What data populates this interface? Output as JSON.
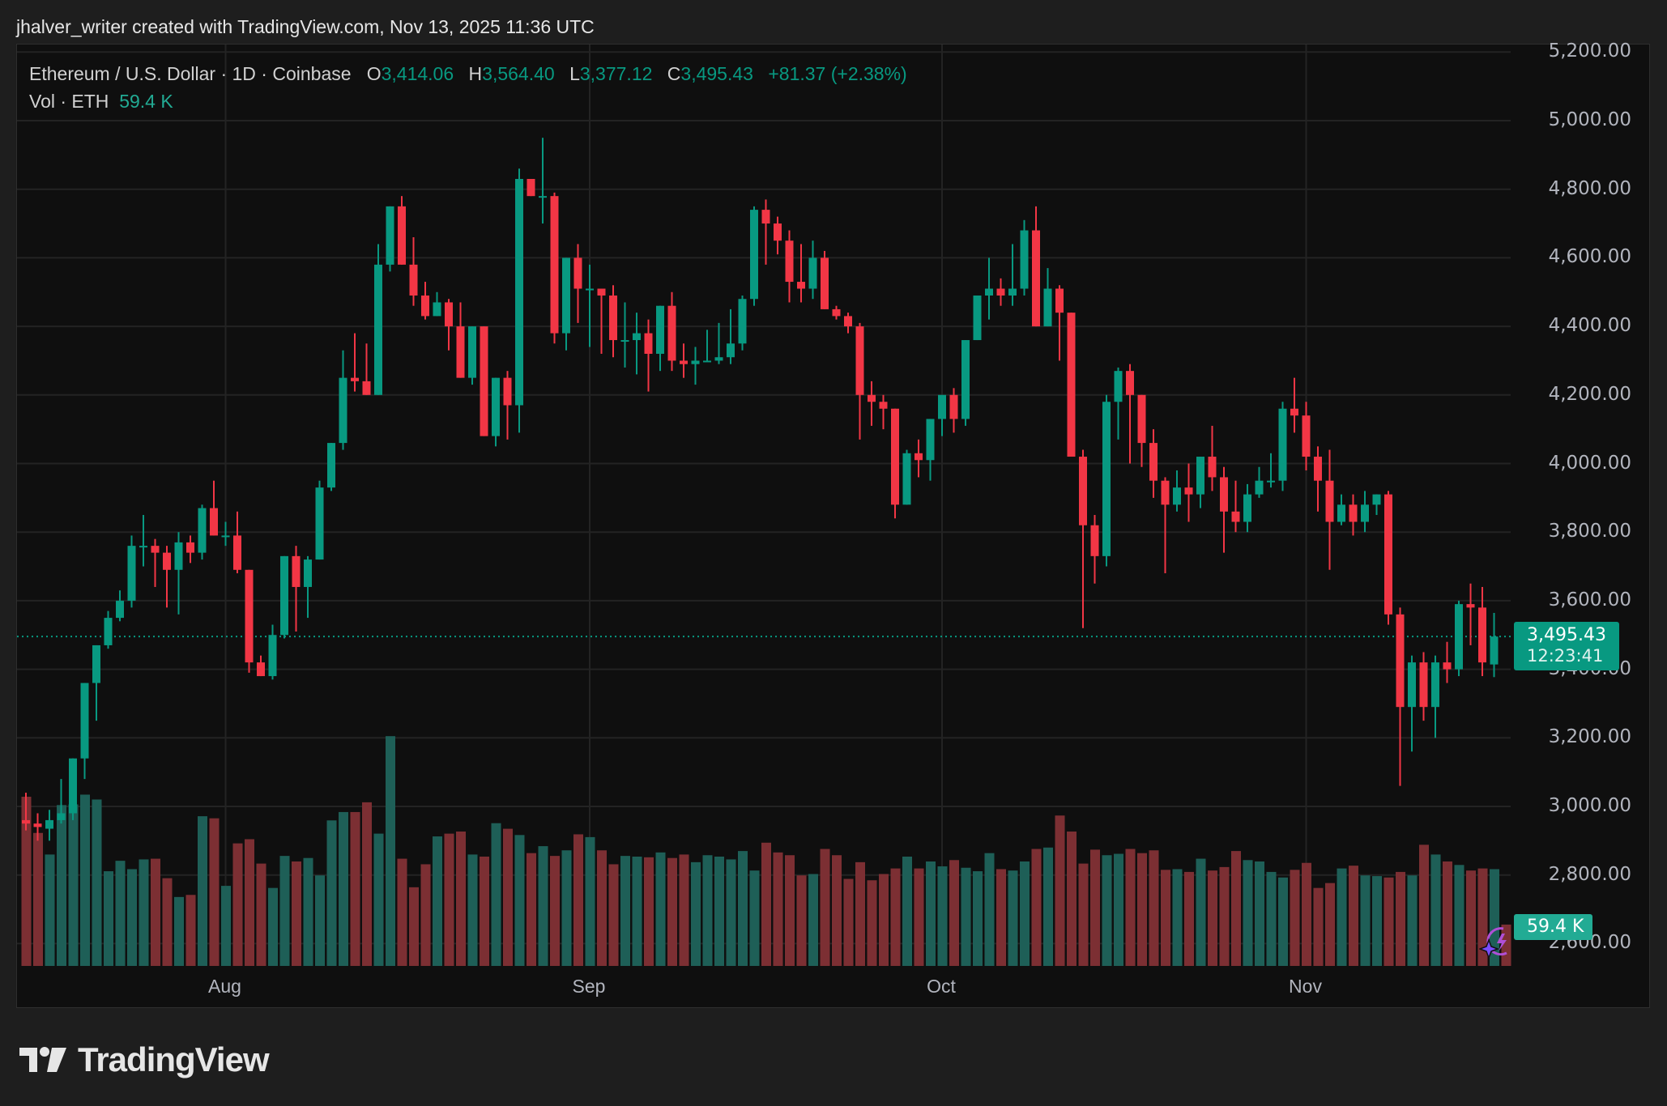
{
  "attribution": "jhalver_writer created with TradingView.com, Nov 13, 2025 11:36 UTC",
  "legend": {
    "symbol": "Ethereum / U.S. Dollar · 1D · Coinbase",
    "open_label": "O",
    "open": "3,414.06",
    "high_label": "H",
    "high": "3,564.40",
    "low_label": "L",
    "low": "3,377.12",
    "close_label": "C",
    "close": "3,495.43",
    "change": "+81.37 (+2.38%)",
    "volume_label": "Vol · ETH",
    "volume": "59.4 K"
  },
  "price_tag": {
    "price": "3,495.43",
    "countdown": "12:23:41"
  },
  "volume_tag": "59.4 K",
  "logo_text": "TradingView",
  "colors": {
    "up": "#089981",
    "down": "#f23645",
    "vol_up": "#1e5f57",
    "vol_down": "#7c2f33",
    "background": "#0f0f0f",
    "grid": "#232323"
  },
  "chart_data": {
    "type": "candlestick",
    "title": "Ethereum / U.S. Dollar · 1D · Coinbase",
    "ylabel": "USD",
    "ylim": [
      2540,
      5220
    ],
    "y_ticks": [
      "5,200.00",
      "5,000.00",
      "4,800.00",
      "4,600.00",
      "4,400.00",
      "4,200.00",
      "4,000.00",
      "3,800.00",
      "3,600.00",
      "3,400.00",
      "3,200.00",
      "3,000.00",
      "2,800.00",
      "2,600.00"
    ],
    "y_tick_values": [
      5200,
      5000,
      4800,
      4600,
      4400,
      4200,
      4000,
      3800,
      3600,
      3400,
      3200,
      3000,
      2800,
      2600
    ],
    "x_labels": [
      {
        "label": "Aug",
        "index": 17
      },
      {
        "label": "Sep",
        "index": 48
      },
      {
        "label": "Oct",
        "index": 78
      },
      {
        "label": "Nov",
        "index": 109
      }
    ],
    "last_price_line": 3495.43,
    "candles": [
      [
        2960,
        3040,
        2930,
        2950
      ],
      [
        2950,
        2980,
        2900,
        2940
      ],
      [
        2935,
        2990,
        2900,
        2960
      ],
      [
        2960,
        3080,
        2950,
        2980
      ],
      [
        2980,
        3140,
        2960,
        3140
      ],
      [
        3140,
        3360,
        3080,
        3360
      ],
      [
        3360,
        3450,
        3250,
        3470
      ],
      [
        3470,
        3570,
        3460,
        3550
      ],
      [
        3550,
        3630,
        3540,
        3600
      ],
      [
        3600,
        3790,
        3580,
        3760
      ],
      [
        3760,
        3850,
        3700,
        3760
      ],
      [
        3760,
        3780,
        3640,
        3740
      ],
      [
        3740,
        3760,
        3580,
        3690
      ],
      [
        3690,
        3800,
        3560,
        3770
      ],
      [
        3770,
        3790,
        3710,
        3740
      ],
      [
        3740,
        3880,
        3720,
        3870
      ],
      [
        3870,
        3950,
        3790,
        3790
      ],
      [
        3790,
        3830,
        3760,
        3790
      ],
      [
        3790,
        3860,
        3680,
        3690
      ],
      [
        3690,
        3690,
        3390,
        3420
      ],
      [
        3420,
        3440,
        3390,
        3380
      ],
      [
        3380,
        3530,
        3370,
        3500
      ],
      [
        3500,
        3730,
        3490,
        3730
      ],
      [
        3730,
        3760,
        3510,
        3640
      ],
      [
        3640,
        3730,
        3550,
        3720
      ],
      [
        3720,
        3950,
        3720,
        3930
      ],
      [
        3930,
        4060,
        3920,
        4060
      ],
      [
        4060,
        4330,
        4040,
        4250
      ],
      [
        4250,
        4380,
        4210,
        4240
      ],
      [
        4240,
        4350,
        4200,
        4200
      ],
      [
        4200,
        4640,
        4200,
        4580
      ],
      [
        4580,
        4670,
        4560,
        4750
      ],
      [
        4750,
        4780,
        4580,
        4580
      ],
      [
        4580,
        4660,
        4460,
        4490
      ],
      [
        4490,
        4530,
        4420,
        4430
      ],
      [
        4430,
        4500,
        4430,
        4470
      ],
      [
        4470,
        4480,
        4330,
        4400
      ],
      [
        4400,
        4470,
        4280,
        4250
      ],
      [
        4250,
        4400,
        4230,
        4400
      ],
      [
        4400,
        4360,
        4130,
        4080
      ],
      [
        4080,
        4250,
        4050,
        4250
      ],
      [
        4250,
        4270,
        4070,
        4170
      ],
      [
        4170,
        4860,
        4090,
        4830
      ],
      [
        4830,
        4800,
        4800,
        4780
      ],
      [
        4780,
        4950,
        4700,
        4780
      ],
      [
        4780,
        4790,
        4350,
        4380
      ],
      [
        4380,
        4600,
        4330,
        4600
      ],
      [
        4600,
        4640,
        4410,
        4510
      ],
      [
        4510,
        4580,
        4340,
        4510
      ],
      [
        4510,
        4460,
        4320,
        4490
      ],
      [
        4490,
        4520,
        4310,
        4360
      ],
      [
        4360,
        4470,
        4280,
        4360
      ],
      [
        4360,
        4440,
        4260,
        4380
      ],
      [
        4380,
        4420,
        4210,
        4320
      ],
      [
        4320,
        4460,
        4270,
        4460
      ],
      [
        4460,
        4500,
        4270,
        4300
      ],
      [
        4300,
        4350,
        4250,
        4290
      ],
      [
        4290,
        4340,
        4230,
        4300
      ],
      [
        4300,
        4390,
        4300,
        4300
      ],
      [
        4300,
        4410,
        4290,
        4310
      ],
      [
        4310,
        4450,
        4290,
        4350
      ],
      [
        4350,
        4490,
        4330,
        4480
      ],
      [
        4480,
        4750,
        4460,
        4740
      ],
      [
        4740,
        4770,
        4580,
        4700
      ],
      [
        4700,
        4720,
        4610,
        4650
      ],
      [
        4650,
        4680,
        4470,
        4530
      ],
      [
        4530,
        4640,
        4470,
        4510
      ],
      [
        4510,
        4650,
        4480,
        4600
      ],
      [
        4600,
        4620,
        4450,
        4450
      ],
      [
        4450,
        4460,
        4420,
        4430
      ],
      [
        4430,
        4440,
        4380,
        4400
      ],
      [
        4400,
        4410,
        4070,
        4200
      ],
      [
        4200,
        4240,
        4110,
        4180
      ],
      [
        4180,
        4200,
        4100,
        4160
      ],
      [
        4160,
        4160,
        3840,
        3880
      ],
      [
        3880,
        4040,
        3880,
        4030
      ],
      [
        4030,
        4070,
        3960,
        4010
      ],
      [
        4010,
        4130,
        3950,
        4130
      ],
      [
        4130,
        4200,
        4080,
        4200
      ],
      [
        4200,
        4220,
        4090,
        4130
      ],
      [
        4130,
        4360,
        4110,
        4360
      ],
      [
        4360,
        4480,
        4360,
        4490
      ],
      [
        4490,
        4600,
        4420,
        4510
      ],
      [
        4510,
        4540,
        4460,
        4490
      ],
      [
        4490,
        4640,
        4460,
        4510
      ],
      [
        4510,
        4710,
        4490,
        4680
      ],
      [
        4680,
        4750,
        4400,
        4400
      ],
      [
        4400,
        4570,
        4400,
        4510
      ],
      [
        4510,
        4520,
        4300,
        4440
      ],
      [
        4440,
        4440,
        4030,
        4020
      ],
      [
        4020,
        4040,
        3520,
        3820
      ],
      [
        3820,
        3850,
        3650,
        3730
      ],
      [
        3730,
        4200,
        3700,
        4180
      ],
      [
        4180,
        4280,
        4070,
        4270
      ],
      [
        4270,
        4290,
        4000,
        4200
      ],
      [
        4200,
        4170,
        3990,
        4060
      ],
      [
        4060,
        4100,
        3900,
        3950
      ],
      [
        3950,
        3960,
        3680,
        3880
      ],
      [
        3880,
        3980,
        3860,
        3930
      ],
      [
        3930,
        4000,
        3830,
        3910
      ],
      [
        3910,
        3980,
        3870,
        4020
      ],
      [
        4020,
        4110,
        3920,
        3960
      ],
      [
        3960,
        3990,
        3740,
        3860
      ],
      [
        3860,
        3950,
        3800,
        3830
      ],
      [
        3830,
        3940,
        3800,
        3910
      ],
      [
        3910,
        3990,
        3900,
        3950
      ],
      [
        3950,
        4030,
        3930,
        3950
      ],
      [
        3950,
        4180,
        3920,
        4160
      ],
      [
        4160,
        4250,
        4090,
        4140
      ],
      [
        4140,
        4180,
        3980,
        4020
      ],
      [
        4020,
        4050,
        3860,
        3950
      ],
      [
        3950,
        4040,
        3690,
        3830
      ],
      [
        3830,
        3910,
        3820,
        3880
      ],
      [
        3880,
        3910,
        3790,
        3830
      ],
      [
        3830,
        3920,
        3800,
        3880
      ],
      [
        3880,
        3910,
        3850,
        3910
      ],
      [
        3910,
        3920,
        3530,
        3560
      ],
      [
        3560,
        3580,
        3060,
        3290
      ],
      [
        3290,
        3440,
        3160,
        3420
      ],
      [
        3420,
        3450,
        3250,
        3290
      ],
      [
        3290,
        3440,
        3200,
        3420
      ],
      [
        3420,
        3480,
        3360,
        3400
      ],
      [
        3400,
        3600,
        3380,
        3590
      ],
      [
        3590,
        3650,
        3470,
        3580
      ],
      [
        3580,
        3640,
        3380,
        3420
      ],
      [
        3414.06,
        3564.4,
        3377.12,
        3495.43
      ]
    ],
    "volume_k": [
      243,
      191,
      160,
      231,
      232,
      246,
      239,
      136,
      151,
      139,
      153,
      154,
      126,
      99,
      102,
      215,
      212,
      115,
      176,
      182,
      147,
      112,
      158,
      150,
      155,
      130,
      209,
      221,
      221,
      235,
      190,
      330,
      154,
      113,
      146,
      186,
      190,
      193,
      160,
      157,
      205,
      197,
      188,
      162,
      172,
      158,
      166,
      189,
      185,
      166,
      146,
      158,
      157,
      156,
      163,
      155,
      160,
      149,
      159,
      157,
      153,
      165,
      137,
      177,
      163,
      159,
      130,
      132,
      168,
      159,
      125,
      149,
      123,
      132,
      140,
      157,
      140,
      150,
      143,
      152,
      141,
      136,
      162,
      139,
      137,
      150,
      168,
      170,
      216,
      193,
      147,
      167,
      159,
      161,
      168,
      162,
      166,
      138,
      139,
      135,
      154,
      137,
      142,
      165,
      152,
      150,
      135,
      127,
      138,
      148,
      112,
      119,
      140,
      144,
      130,
      129,
      127,
      135,
      130,
      174,
      160,
      150,
      145,
      137,
      140,
      139,
      59.4
    ]
  }
}
